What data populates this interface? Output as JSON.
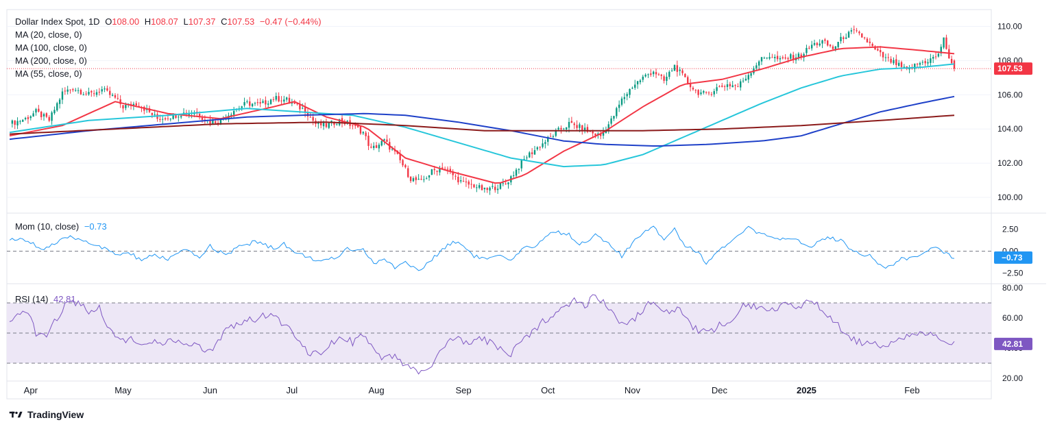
{
  "header": {
    "symbol": "Dollar Index Spot, 1D",
    "open_label": "O",
    "open": "108.00",
    "high_label": "H",
    "high": "108.07",
    "low_label": "L",
    "low": "107.37",
    "close_label": "C",
    "close": "107.53",
    "change": "−0.47 (−0.44%)",
    "ma20": "MA (20, close, 0)",
    "ma100": "MA (100, close, 0)",
    "ma200": "MA (200, close, 0)",
    "ma55": "MA (55, close, 0)"
  },
  "mom_legend": {
    "name": "Mom (10, close)",
    "value": "−0.73"
  },
  "rsi_legend": {
    "name": "RSI (14)",
    "value": "42.81"
  },
  "brand": "TradingView",
  "colors": {
    "up": "#089981",
    "down": "#f23645",
    "ma20": "#f23645",
    "ma55": "#26c6da",
    "ma100": "#1e40c8",
    "ma200": "#8b1a1a",
    "mom": "#2196f3",
    "rsi": "#7e57c2",
    "rsi_band": "#ede7f6"
  },
  "chart_data": [
    {
      "type": "candlestick",
      "title": "Dollar Index Spot, 1D",
      "ylim": [
        99.2,
        110.9
      ],
      "y_ticks": [
        "110.00",
        "108.00",
        "106.00",
        "104.00",
        "102.00",
        "100.00"
      ],
      "x_ticks": [
        "Apr",
        "May",
        "Jun",
        "Jul",
        "Aug",
        "Sep",
        "Oct",
        "Nov",
        "Dec",
        "2025",
        "Feb"
      ],
      "last_price": "107.53",
      "close_path": [
        [
          0,
          104.3
        ],
        [
          6,
          104.6
        ],
        [
          10,
          105.0
        ],
        [
          15,
          104.5
        ],
        [
          20,
          106.1
        ],
        [
          24,
          106.4
        ],
        [
          30,
          106.0
        ],
        [
          35,
          106.3
        ],
        [
          40,
          105.8
        ],
        [
          43,
          105.3
        ],
        [
          48,
          105.5
        ],
        [
          52,
          105.1
        ],
        [
          56,
          104.6
        ],
        [
          60,
          104.7
        ],
        [
          65,
          104.9
        ],
        [
          70,
          105.0
        ],
        [
          76,
          104.4
        ],
        [
          80,
          104.5
        ],
        [
          85,
          105.1
        ],
        [
          90,
          105.5
        ],
        [
          95,
          105.4
        ],
        [
          100,
          105.8
        ],
        [
          105,
          105.7
        ],
        [
          108,
          105.4
        ],
        [
          112,
          105.1
        ],
        [
          116,
          104.3
        ],
        [
          120,
          104.2
        ],
        [
          125,
          104.5
        ],
        [
          130,
          104.2
        ],
        [
          134,
          103.8
        ],
        [
          137,
          102.8
        ],
        [
          142,
          103.3
        ],
        [
          147,
          102.4
        ],
        [
          152,
          101.1
        ],
        [
          156,
          100.9
        ],
        [
          160,
          101.5
        ],
        [
          164,
          101.8
        ],
        [
          168,
          101.3
        ],
        [
          172,
          100.8
        ],
        [
          176,
          100.7
        ],
        [
          180,
          100.4
        ],
        [
          184,
          100.6
        ],
        [
          188,
          100.8
        ],
        [
          192,
          101.6
        ],
        [
          196,
          102.4
        ],
        [
          200,
          102.9
        ],
        [
          204,
          103.4
        ],
        [
          208,
          103.9
        ],
        [
          212,
          104.3
        ],
        [
          216,
          104.1
        ],
        [
          220,
          103.8
        ],
        [
          224,
          103.6
        ],
        [
          228,
          104.5
        ],
        [
          232,
          105.7
        ],
        [
          236,
          106.5
        ],
        [
          240,
          107.0
        ],
        [
          244,
          107.4
        ],
        [
          248,
          106.8
        ],
        [
          252,
          107.7
        ],
        [
          256,
          106.9
        ],
        [
          260,
          106.2
        ],
        [
          264,
          106.0
        ],
        [
          268,
          106.4
        ],
        [
          272,
          106.6
        ],
        [
          276,
          106.5
        ],
        [
          280,
          107.2
        ],
        [
          284,
          108.0
        ],
        [
          288,
          108.3
        ],
        [
          292,
          108.0
        ],
        [
          296,
          108.2
        ],
        [
          300,
          108.3
        ],
        [
          304,
          108.9
        ],
        [
          308,
          109.1
        ],
        [
          312,
          108.7
        ],
        [
          316,
          109.4
        ],
        [
          320,
          109.7
        ],
        [
          324,
          109.3
        ],
        [
          328,
          108.6
        ],
        [
          332,
          108.1
        ],
        [
          336,
          107.8
        ],
        [
          340,
          107.4
        ],
        [
          344,
          107.8
        ],
        [
          348,
          108.0
        ],
        [
          352,
          108.3
        ],
        [
          354,
          109.4
        ],
        [
          356,
          108.0
        ],
        [
          358,
          107.53
        ]
      ],
      "series": [
        {
          "name": "MA (20, close, 0)",
          "values": [
            [
              0,
              103.6
            ],
            [
              20,
              104.2
            ],
            [
              40,
              105.6
            ],
            [
              60,
              104.9
            ],
            [
              80,
              104.6
            ],
            [
              100,
              105.3
            ],
            [
              108,
              105.6
            ],
            [
              120,
              104.7
            ],
            [
              135,
              104.1
            ],
            [
              150,
              102.3
            ],
            [
              165,
              101.6
            ],
            [
              185,
              100.8
            ],
            [
              195,
              101.3
            ],
            [
              210,
              102.7
            ],
            [
              225,
              103.8
            ],
            [
              240,
              105.3
            ],
            [
              255,
              106.6
            ],
            [
              270,
              106.9
            ],
            [
              285,
              107.5
            ],
            [
              300,
              108.2
            ],
            [
              315,
              108.7
            ],
            [
              330,
              108.8
            ],
            [
              345,
              108.6
            ],
            [
              358,
              108.4
            ]
          ]
        },
        {
          "name": "MA (55, close, 0)",
          "values": [
            [
              0,
              103.8
            ],
            [
              30,
              104.5
            ],
            [
              60,
              104.8
            ],
            [
              90,
              105.2
            ],
            [
              110,
              105.0
            ],
            [
              130,
              104.8
            ],
            [
              150,
              104.1
            ],
            [
              170,
              103.2
            ],
            [
              190,
              102.3
            ],
            [
              210,
              101.8
            ],
            [
              225,
              101.9
            ],
            [
              240,
              102.5
            ],
            [
              255,
              103.5
            ],
            [
              270,
              104.5
            ],
            [
              285,
              105.5
            ],
            [
              300,
              106.4
            ],
            [
              315,
              107.1
            ],
            [
              330,
              107.5
            ],
            [
              345,
              107.6
            ],
            [
              358,
              107.8
            ]
          ]
        },
        {
          "name": "MA (100, close, 0)",
          "values": [
            [
              0,
              103.4
            ],
            [
              30,
              103.9
            ],
            [
              60,
              104.3
            ],
            [
              90,
              104.7
            ],
            [
              110,
              104.8
            ],
            [
              135,
              104.9
            ],
            [
              150,
              104.8
            ],
            [
              170,
              104.4
            ],
            [
              190,
              103.9
            ],
            [
              210,
              103.3
            ],
            [
              225,
              103.1
            ],
            [
              245,
              103.0
            ],
            [
              265,
              103.1
            ],
            [
              285,
              103.3
            ],
            [
              300,
              103.6
            ],
            [
              315,
              104.3
            ],
            [
              330,
              105.0
            ],
            [
              345,
              105.5
            ],
            [
              358,
              105.9
            ]
          ]
        },
        {
          "name": "MA (200, close, 0)",
          "values": [
            [
              0,
              103.7
            ],
            [
              40,
              104.0
            ],
            [
              80,
              104.3
            ],
            [
              120,
              104.4
            ],
            [
              150,
              104.2
            ],
            [
              180,
              103.9
            ],
            [
              210,
              103.9
            ],
            [
              240,
              103.9
            ],
            [
              270,
              104.0
            ],
            [
              300,
              104.2
            ],
            [
              330,
              104.5
            ],
            [
              358,
              104.8
            ]
          ]
        }
      ]
    },
    {
      "type": "line",
      "title": "Mom (10, close)",
      "ylim": [
        -3.4,
        3.8
      ],
      "y_ticks": [
        "2.50",
        "0.00",
        "−2.50"
      ],
      "last_value": "−0.73",
      "values": [
        [
          0,
          1.4
        ],
        [
          8,
          1.1
        ],
        [
          12,
          0.2
        ],
        [
          18,
          0.9
        ],
        [
          22,
          1.6
        ],
        [
          28,
          1.3
        ],
        [
          35,
          0.4
        ],
        [
          40,
          -0.4
        ],
        [
          45,
          -0.2
        ],
        [
          50,
          -1.0
        ],
        [
          55,
          -0.5
        ],
        [
          60,
          -0.9
        ],
        [
          66,
          0.1
        ],
        [
          72,
          -0.7
        ],
        [
          76,
          0.6
        ],
        [
          82,
          -0.5
        ],
        [
          88,
          0.7
        ],
        [
          94,
          1.1
        ],
        [
          100,
          0.3
        ],
        [
          104,
          0.9
        ],
        [
          108,
          -0.2
        ],
        [
          114,
          -0.7
        ],
        [
          118,
          -1.3
        ],
        [
          124,
          -0.7
        ],
        [
          128,
          0.3
        ],
        [
          134,
          0.2
        ],
        [
          138,
          -1.4
        ],
        [
          142,
          -1.0
        ],
        [
          146,
          -1.8
        ],
        [
          150,
          -1.2
        ],
        [
          155,
          -2.3
        ],
        [
          160,
          -1.0
        ],
        [
          166,
          0.8
        ],
        [
          170,
          1.1
        ],
        [
          176,
          -0.5
        ],
        [
          180,
          -0.9
        ],
        [
          186,
          -0.6
        ],
        [
          190,
          -1.2
        ],
        [
          194,
          0.1
        ],
        [
          200,
          0.8
        ],
        [
          206,
          2.3
        ],
        [
          212,
          1.9
        ],
        [
          216,
          0.8
        ],
        [
          222,
          1.8
        ],
        [
          228,
          0.6
        ],
        [
          232,
          -0.6
        ],
        [
          236,
          0.8
        ],
        [
          240,
          2.2
        ],
        [
          244,
          2.9
        ],
        [
          248,
          1.4
        ],
        [
          252,
          2.6
        ],
        [
          256,
          0.6
        ],
        [
          260,
          0.1
        ],
        [
          264,
          -1.3
        ],
        [
          270,
          0.4
        ],
        [
          274,
          1.1
        ],
        [
          280,
          2.7
        ],
        [
          286,
          1.8
        ],
        [
          292,
          1.3
        ],
        [
          298,
          1.2
        ],
        [
          304,
          0.6
        ],
        [
          310,
          1.7
        ],
        [
          316,
          1.1
        ],
        [
          320,
          -0.1
        ],
        [
          326,
          -0.5
        ],
        [
          332,
          -2.0
        ],
        [
          338,
          -0.9
        ],
        [
          344,
          -0.8
        ],
        [
          348,
          0.2
        ],
        [
          350,
          0.4
        ],
        [
          354,
          -0.1
        ],
        [
          358,
          -0.73
        ]
      ]
    },
    {
      "type": "line",
      "title": "RSI (14)",
      "ylim": [
        20,
        80
      ],
      "y_ticks": [
        "80.00",
        "60.00",
        "40.00",
        "20.00"
      ],
      "bands": [
        30,
        50,
        70
      ],
      "last_value": "42.81",
      "values": [
        [
          0,
          56
        ],
        [
          4,
          62
        ],
        [
          7,
          65
        ],
        [
          10,
          50
        ],
        [
          14,
          48
        ],
        [
          18,
          60
        ],
        [
          22,
          72
        ],
        [
          26,
          70
        ],
        [
          30,
          65
        ],
        [
          34,
          67
        ],
        [
          38,
          52
        ],
        [
          42,
          46
        ],
        [
          46,
          46
        ],
        [
          50,
          40
        ],
        [
          54,
          44
        ],
        [
          58,
          43
        ],
        [
          62,
          46
        ],
        [
          66,
          40
        ],
        [
          70,
          44
        ],
        [
          74,
          36
        ],
        [
          78,
          40
        ],
        [
          82,
          54
        ],
        [
          86,
          56
        ],
        [
          90,
          58
        ],
        [
          94,
          60
        ],
        [
          98,
          62
        ],
        [
          102,
          58
        ],
        [
          106,
          55
        ],
        [
          110,
          44
        ],
        [
          114,
          36
        ],
        [
          118,
          38
        ],
        [
          122,
          44
        ],
        [
          126,
          48
        ],
        [
          130,
          44
        ],
        [
          134,
          48
        ],
        [
          138,
          38
        ],
        [
          142,
          32
        ],
        [
          146,
          35
        ],
        [
          150,
          28
        ],
        [
          154,
          25
        ],
        [
          158,
          24
        ],
        [
          162,
          34
        ],
        [
          166,
          44
        ],
        [
          170,
          46
        ],
        [
          174,
          42
        ],
        [
          178,
          46
        ],
        [
          182,
          44
        ],
        [
          186,
          40
        ],
        [
          190,
          36
        ],
        [
          194,
          44
        ],
        [
          198,
          50
        ],
        [
          202,
          58
        ],
        [
          206,
          62
        ],
        [
          210,
          68
        ],
        [
          214,
          72
        ],
        [
          218,
          68
        ],
        [
          222,
          76
        ],
        [
          226,
          68
        ],
        [
          230,
          60
        ],
        [
          234,
          54
        ],
        [
          238,
          62
        ],
        [
          242,
          70
        ],
        [
          246,
          68
        ],
        [
          250,
          62
        ],
        [
          254,
          66
        ],
        [
          258,
          56
        ],
        [
          262,
          50
        ],
        [
          266,
          52
        ],
        [
          270,
          56
        ],
        [
          274,
          58
        ],
        [
          278,
          70
        ],
        [
          282,
          68
        ],
        [
          286,
          66
        ],
        [
          290,
          66
        ],
        [
          294,
          72
        ],
        [
          298,
          64
        ],
        [
          302,
          70
        ],
        [
          306,
          70
        ],
        [
          310,
          60
        ],
        [
          314,
          56
        ],
        [
          318,
          46
        ],
        [
          322,
          44
        ],
        [
          326,
          44
        ],
        [
          330,
          40
        ],
        [
          334,
          44
        ],
        [
          338,
          46
        ],
        [
          342,
          48
        ],
        [
          346,
          50
        ],
        [
          350,
          50
        ],
        [
          354,
          46
        ],
        [
          358,
          42.81
        ]
      ]
    }
  ]
}
